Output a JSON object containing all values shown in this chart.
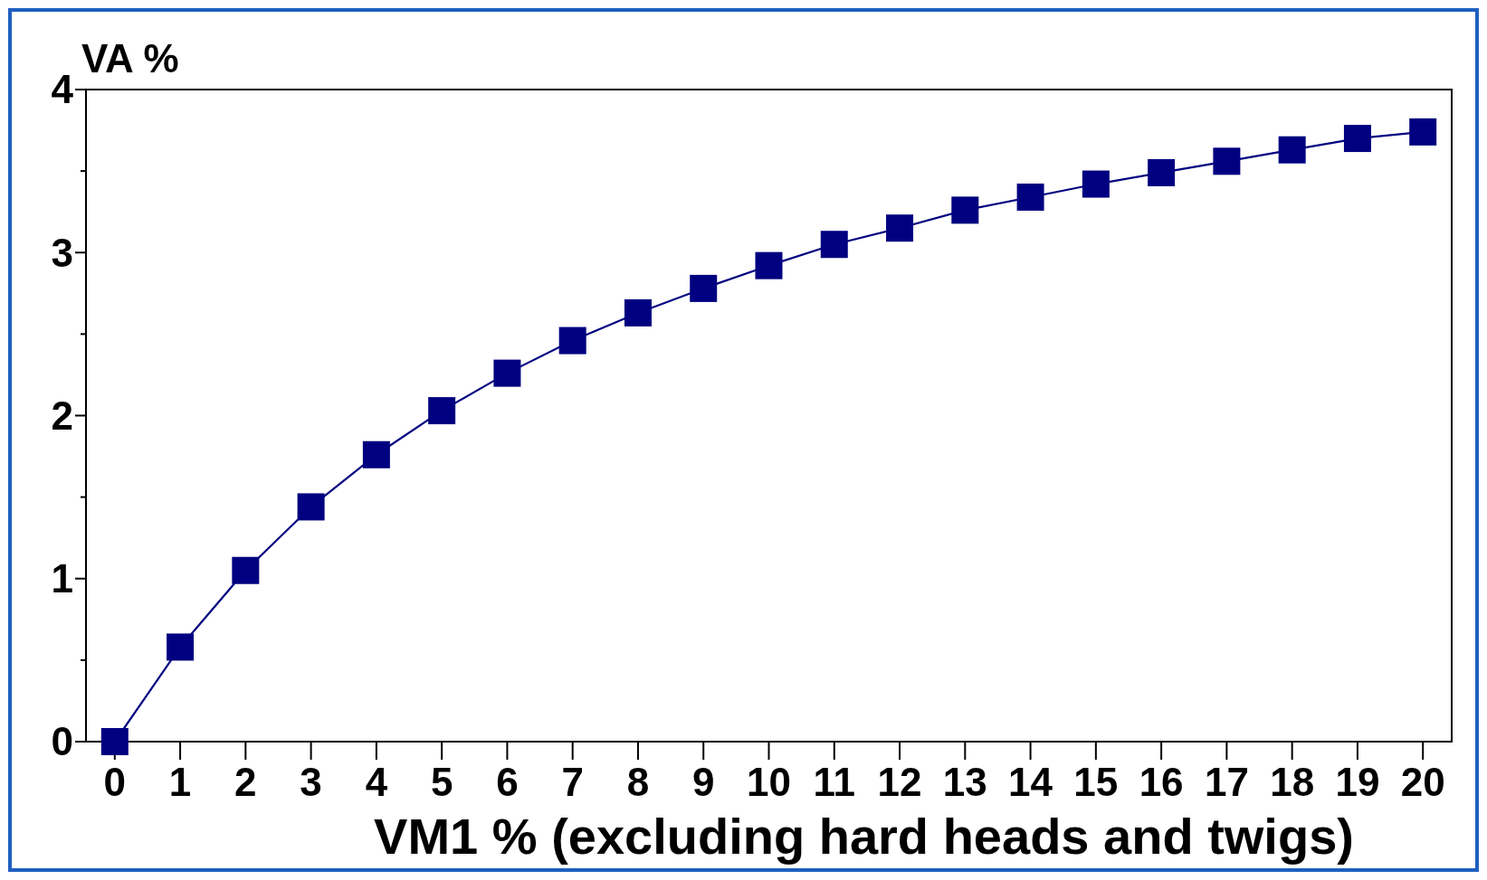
{
  "chart_data": {
    "type": "line",
    "ylabel": "VA %",
    "xlabel": "VM1 % (excluding hard heads and twigs)",
    "x": [
      0,
      1,
      2,
      3,
      4,
      5,
      6,
      7,
      8,
      9,
      10,
      11,
      12,
      13,
      14,
      15,
      16,
      17,
      18,
      19,
      20
    ],
    "series": [
      {
        "color": "#000080",
        "values": [
          0,
          0.58,
          1.05,
          1.44,
          1.76,
          2.03,
          2.26,
          2.46,
          2.63,
          2.78,
          2.92,
          3.05,
          3.15,
          3.26,
          3.34,
          3.42,
          3.49,
          3.56,
          3.63,
          3.7,
          3.74
        ]
      }
    ],
    "xlim": [
      -0.44,
      20.44
    ],
    "xticks": [
      0,
      1,
      2,
      3,
      4,
      5,
      6,
      7,
      8,
      9,
      10,
      11,
      12,
      13,
      14,
      15,
      16,
      17,
      18,
      19,
      20
    ],
    "ylim": [
      0,
      4
    ],
    "yticks": [
      0,
      {
        "value": 0.5,
        "label": null
      },
      1,
      {
        "value": 1.5,
        "label": null
      },
      2,
      {
        "value": 2.5,
        "label": null
      },
      3,
      {
        "value": 3.5,
        "label": null
      },
      4
    ],
    "marker": "square",
    "line_style": "solid"
  }
}
